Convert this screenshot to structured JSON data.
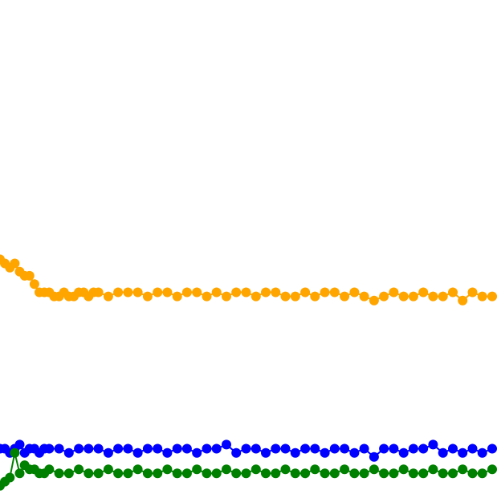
{
  "chart_data": {
    "type": "line",
    "title": "",
    "xlabel": "",
    "ylabel": "",
    "grid": false,
    "legend": "none",
    "xlim": [
      0,
      300
    ],
    "ylim": [
      0,
      1.2
    ],
    "marker": "circle",
    "series": [
      {
        "color": "#FFA500",
        "x": [
          0,
          3,
          6,
          9,
          12,
          15,
          18,
          21,
          24,
          27,
          30,
          33,
          36,
          39,
          42,
          45,
          48,
          51,
          54,
          57,
          60,
          66,
          72,
          78,
          84,
          90,
          96,
          102,
          108,
          114,
          120,
          126,
          132,
          138,
          144,
          150,
          156,
          162,
          168,
          174,
          180,
          186,
          192,
          198,
          204,
          210,
          216,
          222,
          228,
          234,
          240,
          246,
          252,
          258,
          264,
          270,
          276,
          282,
          288,
          294,
          300
        ],
        "y": [
          0.57,
          0.56,
          0.55,
          0.56,
          0.54,
          0.53,
          0.53,
          0.51,
          0.49,
          0.49,
          0.49,
          0.48,
          0.48,
          0.49,
          0.48,
          0.48,
          0.49,
          0.49,
          0.48,
          0.49,
          0.49,
          0.48,
          0.49,
          0.49,
          0.49,
          0.48,
          0.49,
          0.49,
          0.48,
          0.49,
          0.49,
          0.48,
          0.49,
          0.48,
          0.49,
          0.49,
          0.48,
          0.49,
          0.49,
          0.48,
          0.48,
          0.49,
          0.48,
          0.49,
          0.49,
          0.48,
          0.49,
          0.48,
          0.47,
          0.48,
          0.49,
          0.48,
          0.48,
          0.49,
          0.48,
          0.48,
          0.49,
          0.47,
          0.49,
          0.48,
          0.48
        ]
      },
      {
        "color": "#0000FF",
        "x": [
          0,
          3,
          6,
          9,
          12,
          15,
          18,
          21,
          24,
          27,
          30,
          36,
          42,
          48,
          54,
          60,
          66,
          72,
          78,
          84,
          90,
          96,
          102,
          108,
          114,
          120,
          126,
          132,
          138,
          144,
          150,
          156,
          162,
          168,
          174,
          180,
          186,
          192,
          198,
          204,
          210,
          216,
          222,
          228,
          234,
          240,
          246,
          252,
          258,
          264,
          270,
          276,
          282,
          288,
          294,
          300
        ],
        "y": [
          0.11,
          0.11,
          0.1,
          0.11,
          0.12,
          0.1,
          0.11,
          0.11,
          0.1,
          0.11,
          0.11,
          0.11,
          0.1,
          0.11,
          0.11,
          0.11,
          0.1,
          0.11,
          0.11,
          0.1,
          0.11,
          0.11,
          0.1,
          0.11,
          0.11,
          0.1,
          0.11,
          0.11,
          0.12,
          0.1,
          0.11,
          0.11,
          0.1,
          0.11,
          0.11,
          0.1,
          0.11,
          0.11,
          0.1,
          0.11,
          0.11,
          0.1,
          0.11,
          0.09,
          0.11,
          0.11,
          0.1,
          0.11,
          0.11,
          0.12,
          0.1,
          0.11,
          0.1,
          0.11,
          0.1,
          0.11
        ]
      },
      {
        "color": "#008000",
        "x": [
          0,
          3,
          6,
          9,
          12,
          15,
          18,
          21,
          24,
          27,
          30,
          36,
          42,
          48,
          54,
          60,
          66,
          72,
          78,
          84,
          90,
          96,
          102,
          108,
          114,
          120,
          126,
          132,
          138,
          144,
          150,
          156,
          162,
          168,
          174,
          180,
          186,
          192,
          198,
          204,
          210,
          216,
          222,
          228,
          234,
          240,
          246,
          252,
          258,
          264,
          270,
          276,
          282,
          288,
          294,
          300
        ],
        "y": [
          0.02,
          0.03,
          0.04,
          0.1,
          0.05,
          0.07,
          0.06,
          0.06,
          0.05,
          0.05,
          0.06,
          0.05,
          0.05,
          0.06,
          0.05,
          0.05,
          0.06,
          0.05,
          0.05,
          0.06,
          0.05,
          0.05,
          0.06,
          0.05,
          0.05,
          0.06,
          0.05,
          0.05,
          0.06,
          0.05,
          0.05,
          0.06,
          0.05,
          0.05,
          0.06,
          0.05,
          0.05,
          0.06,
          0.05,
          0.05,
          0.06,
          0.05,
          0.05,
          0.06,
          0.05,
          0.05,
          0.06,
          0.05,
          0.05,
          0.06,
          0.05,
          0.05,
          0.06,
          0.05,
          0.05,
          0.06
        ]
      }
    ]
  }
}
